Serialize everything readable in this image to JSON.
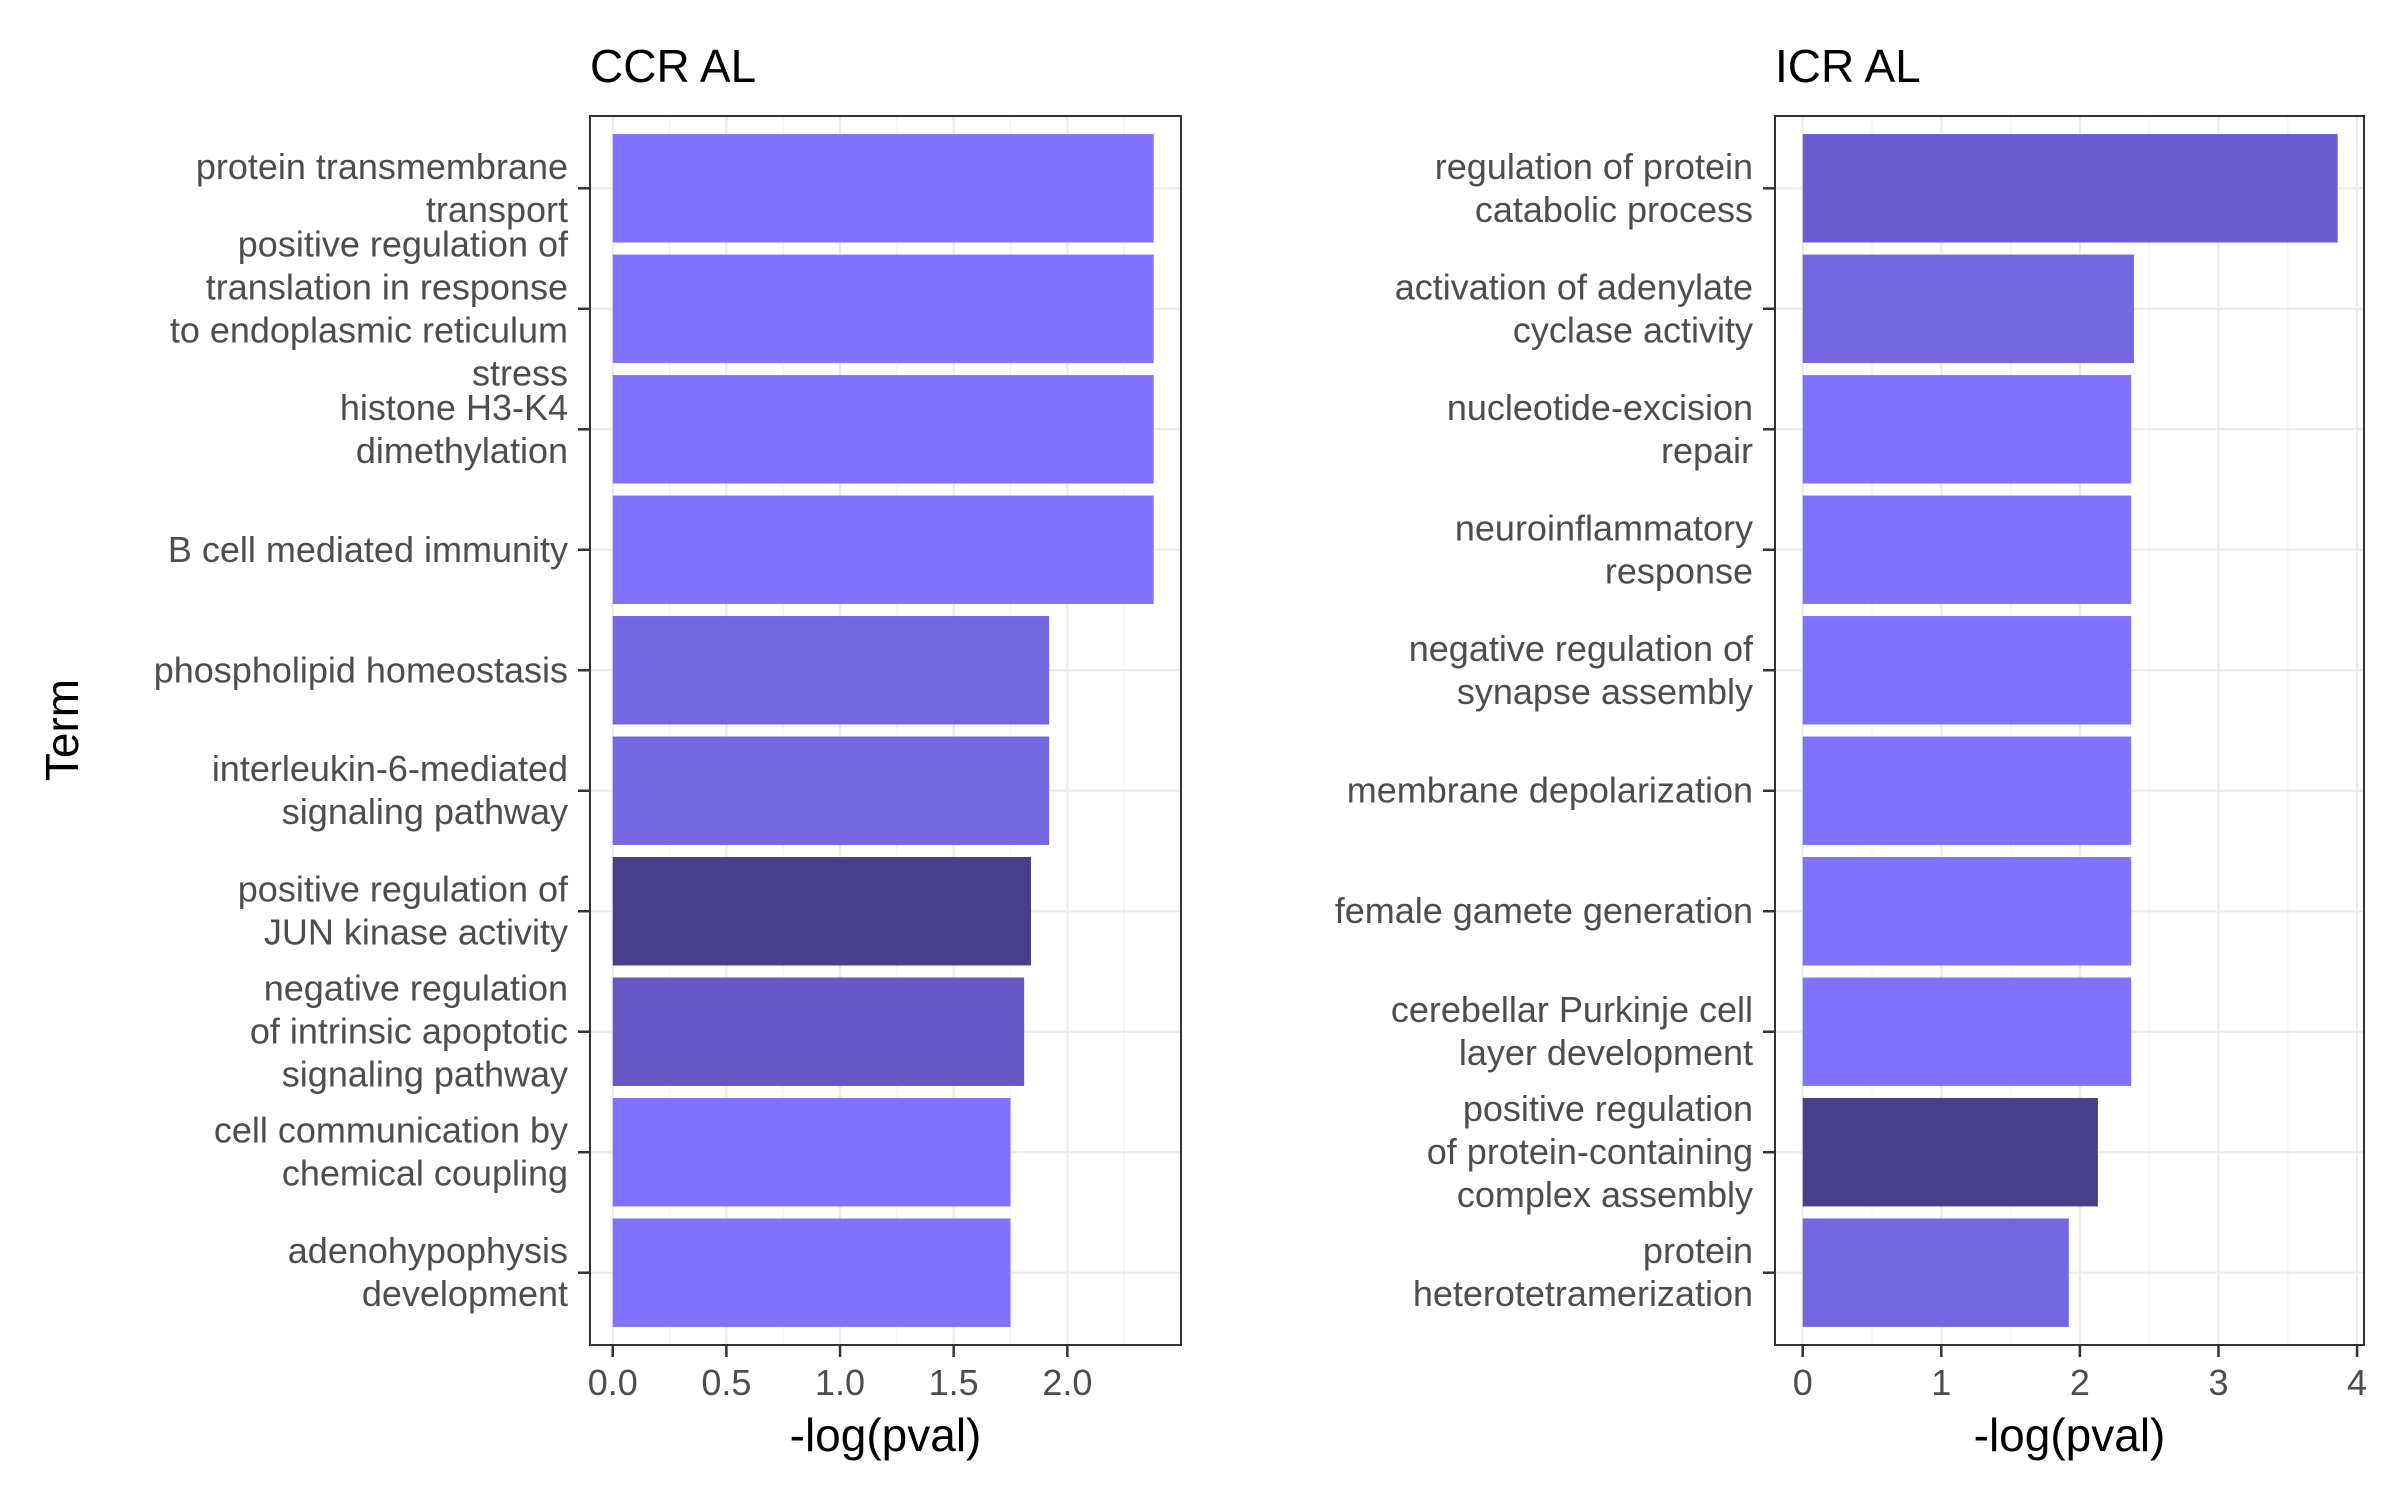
{
  "chart_data": [
    {
      "type": "bar",
      "orientation": "horizontal",
      "title": "CCR AL",
      "xlabel": "-log(pval)",
      "ylabel": "Term",
      "xlim": [
        -0.1,
        2.5
      ],
      "xticks": [
        0.0,
        0.5,
        1.0,
        1.5,
        2.0
      ],
      "xtick_labels": [
        "0.0",
        "0.5",
        "1.0",
        "1.5",
        "2.0"
      ],
      "grid": true,
      "categories": [
        "protein transmembrane transport",
        "positive regulation of translation in response to endoplasmic reticulum stress",
        "histone H3-K4 dimethylation",
        "B cell mediated immunity",
        "phospholipid homeostasis",
        "interleukin-6-mediated signaling pathway",
        "positive regulation of JUN kinase activity",
        "negative regulation of intrinsic apoptotic signaling pathway",
        "cell communication by chemical coupling",
        "adenohypophysis development"
      ],
      "label_lines": [
        [
          "protein transmembrane",
          "transport"
        ],
        [
          "positive regulation of",
          "translation in response",
          "to endoplasmic reticulum",
          "stress"
        ],
        [
          "histone H3-K4",
          "dimethylation"
        ],
        [
          "B cell mediated immunity"
        ],
        [
          "phospholipid homeostasis"
        ],
        [
          "interleukin-6-mediated",
          "signaling pathway"
        ],
        [
          "positive regulation of",
          "JUN kinase activity"
        ],
        [
          "negative regulation",
          "of intrinsic apoptotic",
          "signaling pathway"
        ],
        [
          "cell communication by",
          "chemical coupling"
        ],
        [
          "adenohypophysis",
          "development"
        ]
      ],
      "values": [
        2.38,
        2.38,
        2.38,
        2.38,
        1.92,
        1.92,
        1.84,
        1.81,
        1.75,
        1.75
      ],
      "colors": [
        "#8172fe",
        "#8172fe",
        "#8172fe",
        "#8172fe",
        "#7566e2",
        "#7566e2",
        "#483e8b",
        "#6758c6",
        "#8172fe",
        "#8172fe"
      ]
    },
    {
      "type": "bar",
      "orientation": "horizontal",
      "title": "ICR AL",
      "xlabel": "-log(pval)",
      "ylabel": "",
      "xlim": [
        -0.2,
        4.05
      ],
      "xticks": [
        0,
        1,
        2,
        3,
        4
      ],
      "xtick_labels": [
        "0",
        "1",
        "2",
        "3",
        "4"
      ],
      "grid": true,
      "categories": [
        "regulation of protein catabolic process",
        "activation of adenylate cyclase activity",
        "nucleotide-excision repair",
        "neuroinflammatory response",
        "negative regulation of synapse assembly",
        "membrane depolarization",
        "female gamete generation",
        "cerebellar Purkinje cell layer development",
        "positive regulation of protein-containing complex assembly",
        "protein heterotetramerization"
      ],
      "label_lines": [
        [
          "regulation of protein",
          "catabolic process"
        ],
        [
          "activation of adenylate",
          "cyclase activity"
        ],
        [
          "nucleotide-excision",
          "repair"
        ],
        [
          "neuroinflammatory",
          "response"
        ],
        [
          "negative regulation of",
          "synapse assembly"
        ],
        [
          "membrane depolarization"
        ],
        [
          "female gamete generation"
        ],
        [
          "cerebellar Purkinje cell",
          "layer development"
        ],
        [
          "positive regulation",
          "of protein-containing",
          "complex assembly"
        ],
        [
          "protein",
          "heterotetramerization"
        ]
      ],
      "values": [
        3.86,
        2.39,
        2.37,
        2.37,
        2.37,
        2.37,
        2.37,
        2.37,
        2.13,
        1.92
      ],
      "colors": [
        "#6b5bd2",
        "#7566e2",
        "#8172fe",
        "#8172fe",
        "#8172fe",
        "#8172fe",
        "#8172fe",
        "#8172fe",
        "#483e8b",
        "#7566e2"
      ]
    }
  ]
}
